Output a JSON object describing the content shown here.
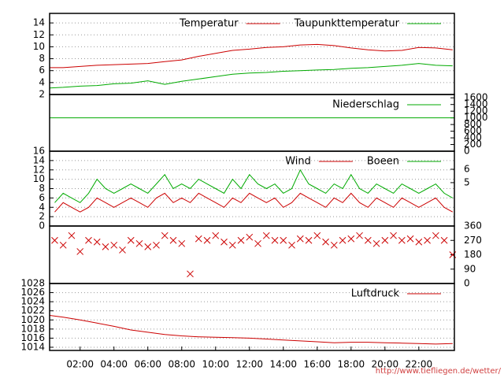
{
  "chart_data": [
    {
      "type": "line",
      "xlim": [
        0.2,
        24.1
      ],
      "ylim": [
        2,
        15.6
      ],
      "yticks": [
        2,
        4,
        6,
        8,
        10,
        12,
        14
      ],
      "grid": true,
      "x": [
        0.2,
        1,
        2,
        3,
        4,
        5,
        6,
        7,
        8,
        9,
        10,
        11,
        12,
        13,
        14,
        15,
        16,
        17,
        18,
        19,
        20,
        21,
        22,
        23,
        24
      ],
      "series": [
        {
          "name": "Temperatur",
          "color": "#cc0000",
          "values": [
            6.5,
            6.5,
            6.7,
            6.9,
            7.0,
            7.1,
            7.2,
            7.5,
            7.8,
            8.4,
            8.9,
            9.4,
            9.6,
            9.9,
            10.0,
            10.3,
            10.4,
            10.2,
            9.8,
            9.5,
            9.3,
            9.4,
            9.9,
            9.8,
            9.5
          ]
        },
        {
          "name": "Taupunkttemperatur",
          "color": "#00aa00",
          "values": [
            3.1,
            3.2,
            3.4,
            3.5,
            3.8,
            3.9,
            4.3,
            3.7,
            4.2,
            4.6,
            5.0,
            5.4,
            5.6,
            5.7,
            5.9,
            6.0,
            6.1,
            6.2,
            6.4,
            6.5,
            6.7,
            6.9,
            7.2,
            6.9,
            6.8
          ]
        }
      ]
    },
    {
      "type": "line",
      "xlim": [
        0.2,
        24.1
      ],
      "y2lim": [
        0,
        1700
      ],
      "y2ticks": [
        0,
        200,
        400,
        600,
        800,
        1000,
        1200,
        1400,
        1600
      ],
      "x": [
        0.2,
        24.1
      ],
      "series": [
        {
          "name": "Niederschlag",
          "color": "#00aa00",
          "axis": "y2",
          "values": [
            1000,
            1000
          ]
        }
      ]
    },
    {
      "type": "line",
      "xlim": [
        0.2,
        24.1
      ],
      "ylim": [
        0,
        16
      ],
      "yticks": [
        0,
        2,
        4,
        6,
        8,
        10,
        12,
        14,
        16
      ],
      "grid": true,
      "y2lim": [
        1.76,
        7.35
      ],
      "y2ticks": [
        5,
        6
      ],
      "x": [
        0.5,
        1,
        1.5,
        2,
        2.5,
        3,
        3.5,
        4,
        4.5,
        5,
        5.5,
        6,
        6.5,
        7,
        7.5,
        8,
        8.5,
        9,
        9.5,
        10,
        10.5,
        11,
        11.5,
        12,
        12.5,
        13,
        13.5,
        14,
        14.5,
        15,
        15.5,
        16,
        16.5,
        17,
        17.5,
        18,
        18.5,
        19,
        19.5,
        20,
        20.5,
        21,
        21.5,
        22,
        22.5,
        23,
        23.5,
        24
      ],
      "series": [
        {
          "name": "Wind",
          "color": "#cc0000",
          "values": [
            3,
            5,
            4,
            3,
            4,
            6,
            5,
            4,
            5,
            6,
            5,
            4,
            6,
            7,
            5,
            6,
            5,
            7,
            6,
            5,
            4,
            6,
            5,
            7,
            6,
            5,
            6,
            4,
            5,
            7,
            6,
            5,
            4,
            6,
            5,
            7,
            5,
            4,
            6,
            5,
            4,
            6,
            5,
            4,
            5,
            6,
            4,
            3
          ]
        },
        {
          "name": "Boeen",
          "color": "#00aa00",
          "values": [
            5,
            7,
            6,
            5,
            7,
            10,
            8,
            7,
            8,
            9,
            8,
            7,
            9,
            11,
            8,
            9,
            8,
            10,
            9,
            8,
            7,
            10,
            8,
            11,
            9,
            8,
            9,
            7,
            8,
            12,
            9,
            8,
            7,
            9,
            8,
            11,
            8,
            7,
            9,
            8,
            7,
            9,
            8,
            7,
            8,
            9,
            7,
            6
          ]
        }
      ]
    },
    {
      "type": "scatter",
      "xlim": [
        0.2,
        24.1
      ],
      "y2lim": [
        0,
        360
      ],
      "y2ticks": [
        0,
        90,
        180,
        270,
        360
      ],
      "x": [
        0.5,
        1,
        1.5,
        2,
        2.5,
        3,
        3.5,
        4,
        4.5,
        5,
        5.5,
        6,
        6.5,
        7,
        7.5,
        8,
        8.5,
        9,
        9.5,
        10,
        10.5,
        11,
        11.5,
        12,
        12.5,
        13,
        13.5,
        14,
        14.5,
        15,
        15.5,
        16,
        16.5,
        17,
        17.5,
        18,
        18.5,
        19,
        19.5,
        20,
        20.5,
        21,
        21.5,
        22,
        22.5,
        23,
        23.5,
        24
      ],
      "series": [
        {
          "color": "#cc0000",
          "axis": "y2",
          "values": [
            270,
            240,
            300,
            200,
            270,
            260,
            230,
            240,
            210,
            270,
            250,
            230,
            240,
            300,
            270,
            250,
            60,
            280,
            270,
            300,
            260,
            240,
            270,
            290,
            250,
            300,
            270,
            270,
            240,
            280,
            270,
            300,
            260,
            240,
            270,
            280,
            300,
            270,
            250,
            270,
            300,
            270,
            280,
            260,
            270,
            300,
            270,
            180
          ]
        }
      ]
    },
    {
      "type": "line",
      "xlim": [
        0.2,
        24.1
      ],
      "ylim": [
        1013.3,
        1028
      ],
      "yticks": [
        1014,
        1016,
        1018,
        1020,
        1022,
        1024,
        1026,
        1028
      ],
      "grid": true,
      "xticks": [
        {
          "value": 2,
          "label": "02:00"
        },
        {
          "value": 4,
          "label": "04:00"
        },
        {
          "value": 6,
          "label": "06:00"
        },
        {
          "value": 8,
          "label": "08:00"
        },
        {
          "value": 10,
          "label": "10:00"
        },
        {
          "value": 12,
          "label": "12:00"
        },
        {
          "value": 14,
          "label": "14:00"
        },
        {
          "value": 16,
          "label": "16:00"
        },
        {
          "value": 18,
          "label": "18:00"
        },
        {
          "value": 20,
          "label": "20:00"
        },
        {
          "value": 22,
          "label": "22:00"
        }
      ],
      "x": [
        0.2,
        1,
        2,
        3,
        4,
        5,
        6,
        7,
        8,
        9,
        10,
        11,
        12,
        13,
        14,
        15,
        16,
        17,
        18,
        19,
        20,
        21,
        22,
        23,
        24
      ],
      "series": [
        {
          "name": "Luftdruck",
          "color": "#cc0000",
          "values": [
            1021,
            1020.6,
            1020,
            1019.3,
            1018.6,
            1017.8,
            1017.3,
            1016.8,
            1016.5,
            1016.3,
            1016.2,
            1016.1,
            1016.0,
            1015.8,
            1015.6,
            1015.4,
            1015.2,
            1015.0,
            1015.1,
            1015.1,
            1015.0,
            1014.9,
            1014.8,
            1014.7,
            1014.8
          ]
        }
      ]
    }
  ],
  "footer": "http://www.tiefliegen.de/wetter/"
}
